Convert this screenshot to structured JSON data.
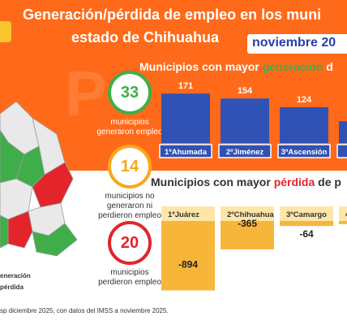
{
  "header": {
    "title_line1": "Generación/pérdida de empleo en los muni",
    "title_line2": "estado de Chihuahua",
    "month": "noviembre 20"
  },
  "stats": [
    {
      "value": "33",
      "caption": [
        "municipios",
        "generaron empleo"
      ],
      "color": "#3fae49"
    },
    {
      "value": "14",
      "caption": [
        "municipios no",
        "generaron ni",
        "perdieron empleo"
      ],
      "color": "#f7a81b"
    },
    {
      "value": "20",
      "caption": [
        "municipios",
        "perdieron empleo"
      ],
      "color": "#e3242b"
    }
  ],
  "legend": {
    "items": [
      "eneración",
      "pérdida"
    ]
  },
  "footer": "sp diciembre 2025, con datos del IMSS a noviembre 2025.",
  "chart_data": [
    {
      "type": "bar",
      "title_parts": [
        "Municipios con mayor ",
        "generación",
        " d"
      ],
      "categories": [
        "1ºAhumada",
        "2ºJiménez",
        "3ºAscensión",
        "4"
      ],
      "values": [
        171,
        154,
        124,
        75
      ],
      "value_labels": [
        "171",
        "154",
        "124",
        ""
      ],
      "bar_color": "#2f52b4",
      "label_bg": "#2f52b4",
      "ylim": [
        0,
        180
      ]
    },
    {
      "type": "bar",
      "title_parts": [
        "Municipios con mayor ",
        "pérdida",
        " de p"
      ],
      "categories": [
        "1ºJuárez",
        "2ºChihuahua",
        "3ºCamargo",
        "4º"
      ],
      "values": [
        -894,
        -365,
        -64,
        -40
      ],
      "value_labels": [
        "-894",
        "-365",
        "-64",
        ""
      ],
      "bar_color": "#f7b53a",
      "label_bg": "#fde6a8",
      "ylim": [
        -900,
        0
      ]
    }
  ]
}
